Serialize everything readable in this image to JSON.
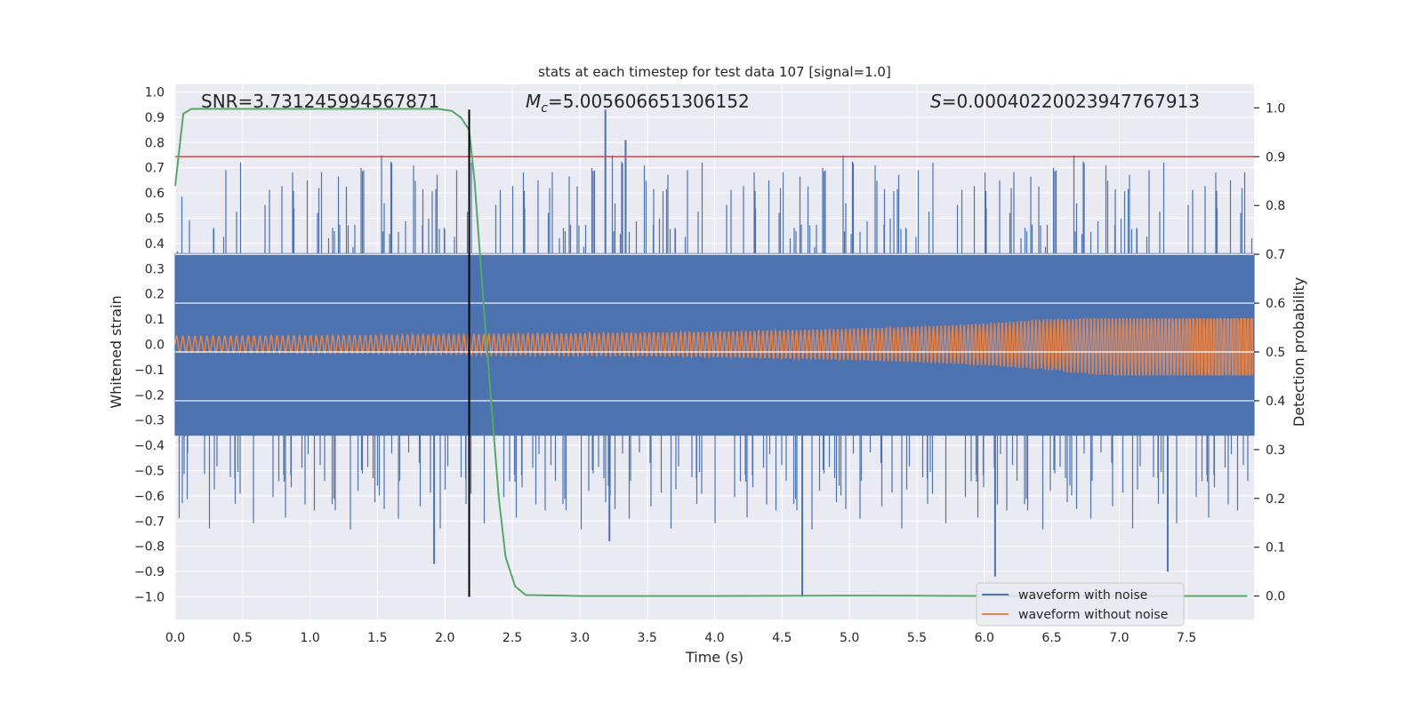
{
  "chart_data": {
    "type": "line",
    "title": "stats at each timestep for test data 107 [signal=1.0]",
    "xlabel": "Time (s)",
    "ylabel_left": "Whitened strain",
    "ylabel_right": "Detection probability",
    "xlim": [
      0.0,
      8.0
    ],
    "ylim_left": [
      -1.09,
      1.03
    ],
    "ylim_right": [
      -0.048,
      1.048
    ],
    "x_ticks": [
      "0.0",
      "0.5",
      "1.0",
      "1.5",
      "2.0",
      "2.5",
      "3.0",
      "3.5",
      "4.0",
      "4.5",
      "5.0",
      "5.5",
      "6.0",
      "6.5",
      "7.0",
      "7.5"
    ],
    "y_left_ticks": [
      "1.0",
      "0.9",
      "0.8",
      "0.7",
      "0.6",
      "0.5",
      "0.4",
      "0.3",
      "0.2",
      "0.1",
      "0.0",
      "−0.1",
      "−0.2",
      "−0.3",
      "−0.4",
      "−0.5",
      "−0.6",
      "−0.7",
      "−0.8",
      "−0.9",
      "−1.0"
    ],
    "y_right_ticks": [
      "0.0",
      "0.1",
      "0.2",
      "0.3",
      "0.4",
      "0.5",
      "0.6",
      "0.7",
      "0.8",
      "0.9",
      "1.0"
    ],
    "annotations": {
      "snr": "SNR=3.731245994567871",
      "mc_symbol": "M",
      "mc_sub": "c",
      "mc_value": "=5.005606651306152",
      "s_symbol": "S",
      "s_value": "=0.00040220023947767913"
    },
    "series": [
      {
        "name": "waveform with noise",
        "color": "#4c72b0",
        "axis": "left",
        "style": "dense noise, approx. range -1.0 to 0.93",
        "peaks": [
          {
            "x": 3.19,
            "y": 0.93
          },
          {
            "x": 3.34,
            "y": 0.81
          },
          {
            "x": 4.65,
            "y": -1.0
          },
          {
            "x": 1.92,
            "y": -0.87
          },
          {
            "x": 3.22,
            "y": -0.78
          },
          {
            "x": 6.08,
            "y": -0.92
          },
          {
            "x": 7.36,
            "y": -0.9
          }
        ]
      },
      {
        "name": "waveform without noise",
        "color": "#dd8452",
        "axis": "left",
        "style": "chirp, amplitude growing to about 0.1 at t=8"
      },
      {
        "color": "#55a868",
        "axis": "right",
        "x": [
          0.0,
          0.06,
          0.12,
          0.3,
          0.8,
          1.5,
          1.95,
          2.05,
          2.12,
          2.18,
          2.22,
          2.3,
          2.4,
          2.45,
          2.52,
          2.6,
          3.0,
          4.0,
          5.0,
          6.0,
          7.0,
          7.95
        ],
        "y": [
          0.84,
          0.988,
          0.998,
          0.998,
          0.998,
          0.998,
          0.998,
          0.994,
          0.98,
          0.955,
          0.85,
          0.55,
          0.2,
          0.08,
          0.02,
          0.002,
          0.0,
          0.0,
          0.001,
          0.0,
          0.0,
          0.0
        ]
      }
    ],
    "threshold": {
      "axis": "right",
      "y": 0.9,
      "color": "#c44e52"
    },
    "vertical_marker": {
      "x": 2.18,
      "y_from": -1.0,
      "y_to": 0.93,
      "color": "#000000"
    },
    "legend": {
      "placement": "lower-right",
      "entries": [
        {
          "label": "waveform with noise",
          "color": "#4c72b0"
        },
        {
          "label": "waveform without noise",
          "color": "#dd8452"
        }
      ]
    },
    "grid": true,
    "background": "#eaeaf2"
  }
}
